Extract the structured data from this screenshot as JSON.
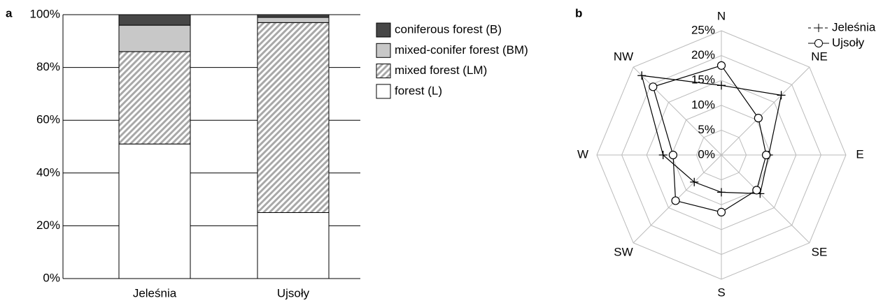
{
  "chart_data": [
    {
      "type": "bar",
      "stacked": true,
      "label": "a",
      "categories": [
        "Jeleśnia",
        "Ujsoły"
      ],
      "series": [
        {
          "name": "forest (L)",
          "color": "#ffffff",
          "values": [
            51,
            25
          ]
        },
        {
          "name": "mixed forest (LM)",
          "color": "#a8a8a8",
          "pattern": "diagonal",
          "values": [
            35,
            72
          ]
        },
        {
          "name": "mixed-conifer forest (BM)",
          "color": "#c8c8c8",
          "values": [
            10,
            2
          ]
        },
        {
          "name": "coniferous forest (B)",
          "color": "#474747",
          "values": [
            4,
            1
          ]
        }
      ],
      "ylim": [
        0,
        100
      ],
      "yticks": [
        {
          "value": 0,
          "label": "0%"
        },
        {
          "value": 20,
          "label": "20%"
        },
        {
          "value": 40,
          "label": "40%"
        },
        {
          "value": 60,
          "label": "60%"
        },
        {
          "value": 80,
          "label": "80%"
        },
        {
          "value": 100,
          "label": "100%"
        }
      ],
      "grid": true,
      "legend": "right"
    },
    {
      "type": "radar",
      "label": "b",
      "categories": [
        "N",
        "NE",
        "E",
        "SE",
        "S",
        "SW",
        "W",
        "NW"
      ],
      "series": [
        {
          "name": "Jeleśnia",
          "color": "#000000",
          "marker": "plus",
          "values": [
            14,
            17,
            9.5,
            11,
            7.5,
            7.7,
            11.7,
            22.6
          ]
        },
        {
          "name": "Ujsoły",
          "color": "#000000",
          "marker": "circle",
          "values": [
            18,
            10.5,
            9,
            10,
            11.5,
            13,
            9.7,
            19.4
          ]
        }
      ],
      "rlim": [
        0,
        25
      ],
      "rticks": [
        {
          "value": 0,
          "label": "0%"
        },
        {
          "value": 5,
          "label": "5%"
        },
        {
          "value": 10,
          "label": "10%"
        },
        {
          "value": 15,
          "label": "15%"
        },
        {
          "value": 20,
          "label": "20%"
        },
        {
          "value": 25,
          "label": "25%"
        }
      ],
      "grid": true,
      "legend": "upper right"
    }
  ]
}
